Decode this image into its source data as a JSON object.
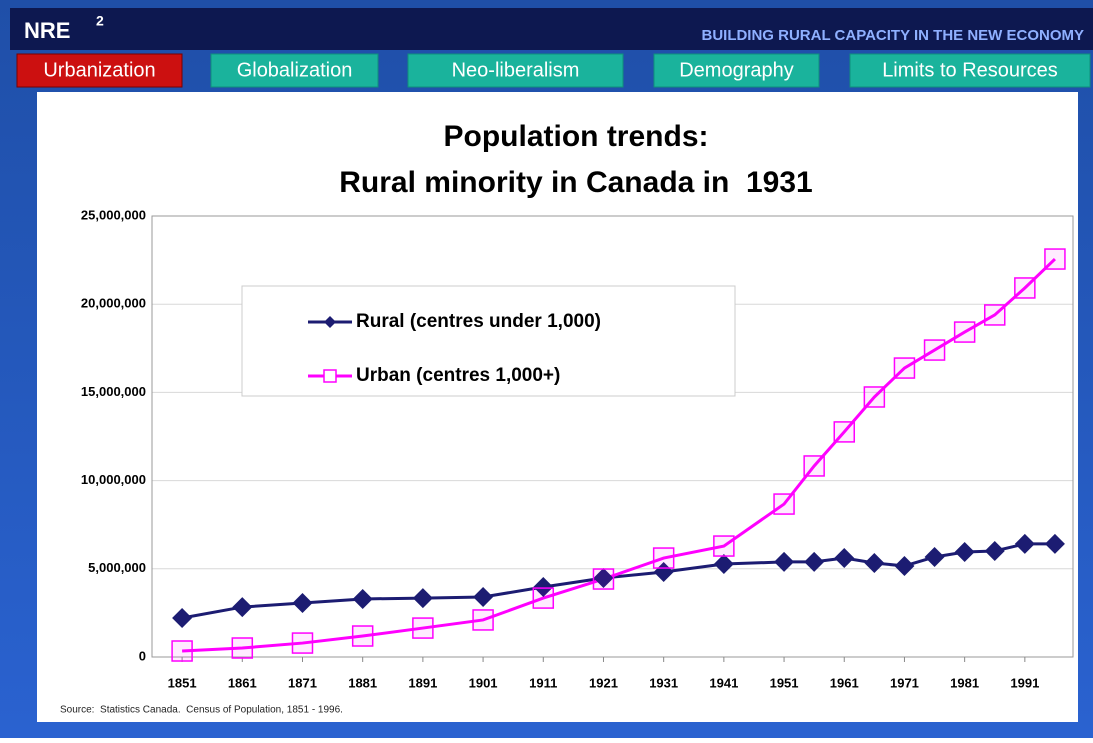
{
  "header": {
    "logo": "NRE",
    "logo_sup": "2",
    "tagline": "BUILDING RURAL CAPACITY IN THE NEW ECONOMY"
  },
  "tabs": [
    "Urbanization",
    "Globalization",
    "Neo-liberalism",
    "Demography",
    "Limits to Resources"
  ],
  "active_tab": 0,
  "chart_data": {
    "type": "line",
    "title": "Population trends:",
    "subtitle": "Rural minority in Canada in  1931",
    "source": "Source:  Statistics Canada.  Census of Population, 1851 - 1996.",
    "x": [
      1851,
      1861,
      1871,
      1881,
      1891,
      1901,
      1911,
      1921,
      1931,
      1941,
      1951,
      1956,
      1961,
      1966,
      1971,
      1976,
      1981,
      1986,
      1991,
      1996
    ],
    "xlim": [
      1846,
      1999
    ],
    "xticks": [
      1851,
      1861,
      1871,
      1881,
      1891,
      1901,
      1911,
      1921,
      1931,
      1941,
      1951,
      1961,
      1971,
      1981,
      1991
    ],
    "ylim": [
      0,
      25000000
    ],
    "yticks": [
      0,
      {
        "value": 5000000,
        "label": "5,000,000"
      },
      {
        "value": 10000000,
        "label": "10,000,000"
      },
      {
        "value": 15000000,
        "label": "15,000,000"
      },
      {
        "value": 20000000,
        "label": "20,000,000"
      },
      {
        "value": 25000000,
        "label": "25,000,000"
      }
    ],
    "grid": true,
    "series": [
      {
        "name": "Rural (centres under 1,000)",
        "color": "#1c1c72",
        "marker": "diamond",
        "values": [
          2210000,
          2830000,
          3060000,
          3290000,
          3340000,
          3400000,
          3970000,
          4480000,
          4820000,
          5270000,
          5390000,
          5390000,
          5610000,
          5330000,
          5160000,
          5670000,
          5950000,
          6010000,
          6410000,
          6410000
        ]
      },
      {
        "name": "Urban (centres 1,000+)",
        "color": "#ff00ff",
        "marker": "square",
        "values": [
          340000,
          510000,
          790000,
          1190000,
          1640000,
          2100000,
          3340000,
          4420000,
          5610000,
          6290000,
          8670000,
          10830000,
          12760000,
          14740000,
          16380000,
          17400000,
          18420000,
          19390000,
          20920000,
          22560000
        ]
      }
    ]
  }
}
